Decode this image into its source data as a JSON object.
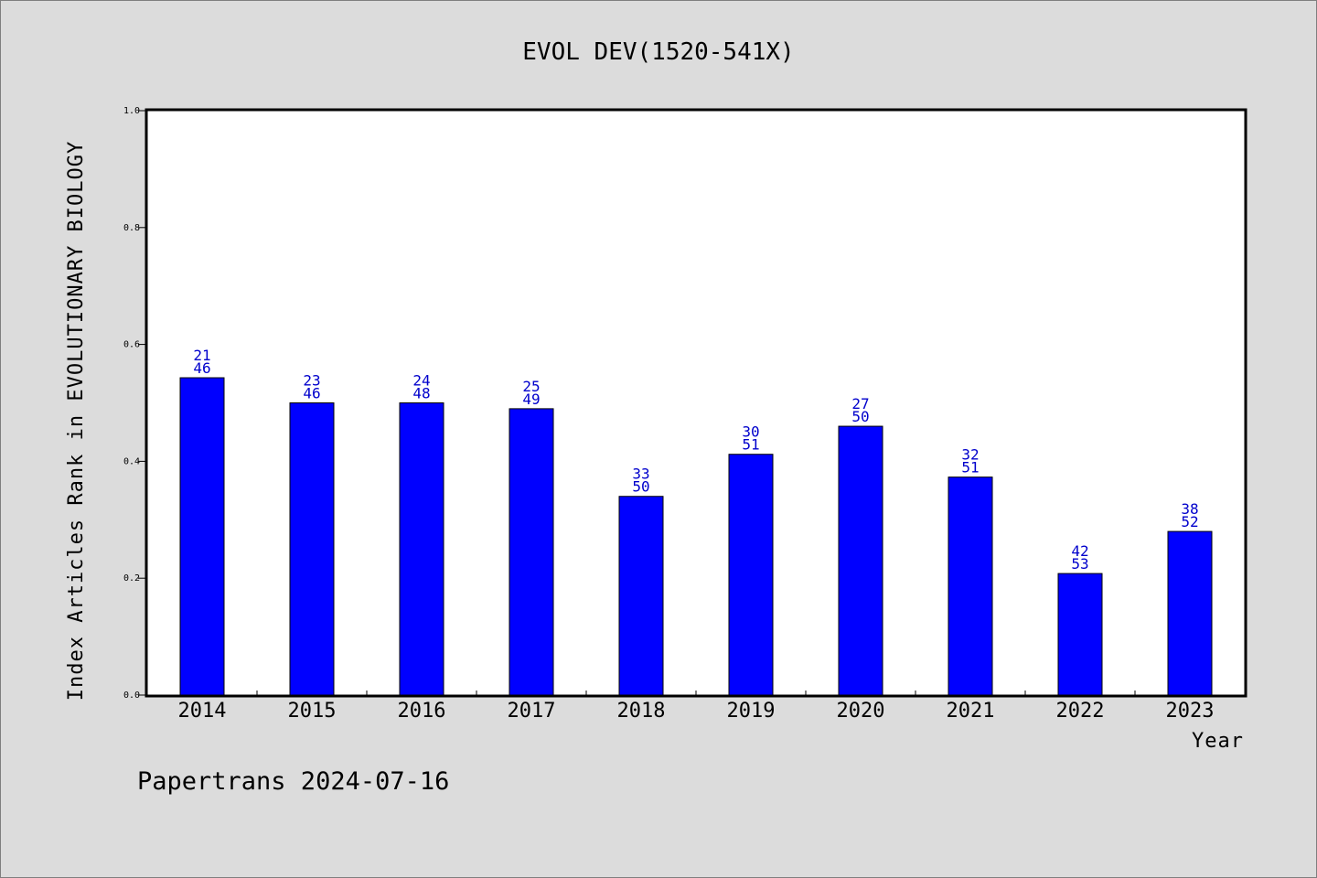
{
  "chart_data": {
    "type": "bar",
    "title": "EVOL DEV(1520-541X)",
    "xlabel": "Year",
    "ylabel": "Index Articles Rank in EVOLUTIONARY BIOLOGY",
    "ylim": [
      0.0,
      1.0
    ],
    "yticks": [
      "0.0",
      "0.2",
      "0.4",
      "0.6",
      "0.8",
      "1.0"
    ],
    "categories": [
      "2014",
      "2015",
      "2016",
      "2017",
      "2018",
      "2019",
      "2020",
      "2021",
      "2022",
      "2023"
    ],
    "values": [
      0.543,
      0.5,
      0.5,
      0.49,
      0.34,
      0.412,
      0.46,
      0.373,
      0.208,
      0.28
    ],
    "labels_top": [
      "21",
      "23",
      "24",
      "25",
      "33",
      "30",
      "27",
      "32",
      "42",
      "38"
    ],
    "labels_bottom": [
      "46",
      "46",
      "48",
      "49",
      "50",
      "51",
      "50",
      "51",
      "53",
      "52"
    ],
    "bar_color": "#0000ff",
    "label_color": "#0000cc",
    "background": "#dcdcdc",
    "grid": false,
    "legend": "none"
  },
  "footer": "Papertrans 2024-07-16"
}
